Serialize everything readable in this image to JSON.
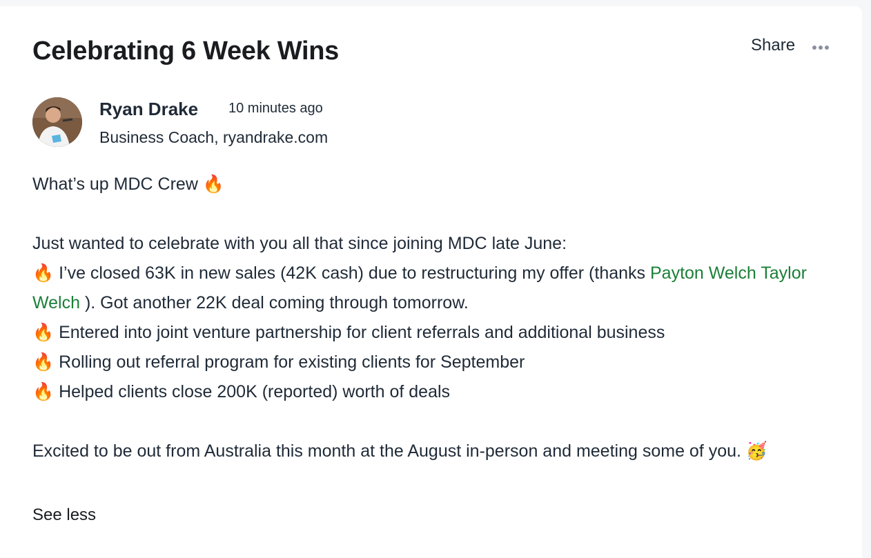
{
  "post": {
    "title": "Celebrating 6 Week Wins",
    "share_label": "Share",
    "more_icon": "more-horizontal-icon",
    "author": {
      "name": "Ryan Drake",
      "time": "10 minutes ago",
      "role": "Business Coach, ryandrake.com"
    },
    "greeting": "What’s up MDC Crew 🔥",
    "intro": "Just wanted to celebrate with you all that since joining MDC late June:",
    "line1_a": "🔥 I’ve closed 63K in new sales (42K cash) due to restructuring my offer (thanks ",
    "mention1": "Payton Welch",
    "mention2": "Taylor Welch",
    "line1_b": " ). Got another 22K deal coming through tomorrow.",
    "line2": "🔥 Entered into joint venture partnership for client referrals and additional business",
    "line3": "🔥 Rolling out referral program for existing clients for September",
    "line4": "🔥 Helped clients close 200K (reported) worth of deals",
    "closing": "Excited to be out from Australia this month at the August in-person and meeting some of you. 🥳",
    "see_less": "See less"
  },
  "colors": {
    "link": "#1a7f37",
    "text": "#1f2a37",
    "background": "#f6f7f9"
  }
}
